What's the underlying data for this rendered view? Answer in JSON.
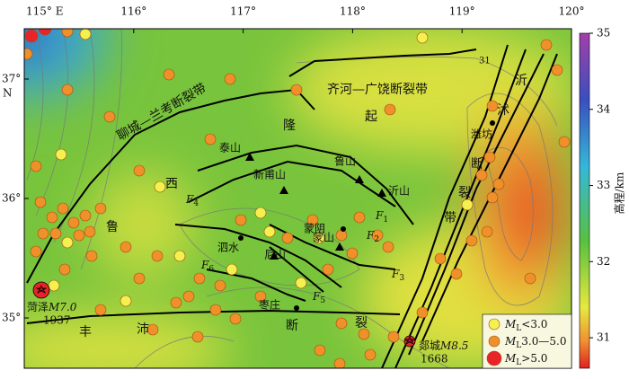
{
  "map": {
    "lon_ticks": [
      {
        "value": 115,
        "label": "115° E"
      },
      {
        "value": 116,
        "label": "116°"
      },
      {
        "value": 117,
        "label": "117°"
      },
      {
        "value": 118,
        "label": "118°"
      },
      {
        "value": 119,
        "label": "119°"
      },
      {
        "value": 120,
        "label": "120°"
      }
    ],
    "lat_ticks": [
      {
        "value": 37,
        "label": "37°"
      },
      {
        "value": 36,
        "label": "36°"
      },
      {
        "value": 35,
        "label": "35°"
      }
    ],
    "lat_hemisphere": "N",
    "colorbar": {
      "title": "高程/km",
      "range": [
        30.6,
        35
      ],
      "ticks": [
        31,
        32,
        33,
        34,
        35
      ]
    },
    "legend": [
      {
        "symbol": "M",
        "subscript": "L",
        "text": "<3.0"
      },
      {
        "symbol": "M",
        "subscript": "L",
        "text": "3.0—5.0"
      },
      {
        "symbol": "M",
        "subscript": "L",
        "text": ">5.0"
      }
    ],
    "mountains": [
      "泰山",
      "新甫山",
      "鲁山",
      "沂山",
      "蒙山",
      "尼山"
    ],
    "cities": [
      "蒙阴",
      "泗水",
      "枣庄",
      "潍坊"
    ],
    "fault_zones": {
      "liaocheng_lankao": "聊城—兰考断裂带",
      "qihe_guangrao": "齐河—广饶断裂带",
      "yishu": [
        "沂",
        "沭",
        "断",
        "裂",
        "带"
      ],
      "fengpei": [
        "丰",
        "沛",
        "断",
        "裂"
      ]
    },
    "uplift": [
      "鲁",
      "西",
      "隆",
      "起"
    ],
    "faults": [
      {
        "symbol": "F",
        "subscript": "1"
      },
      {
        "symbol": "F",
        "subscript": "2"
      },
      {
        "symbol": "F",
        "subscript": "3"
      },
      {
        "symbol": "F",
        "subscript": "4"
      },
      {
        "symbol": "F",
        "subscript": "5"
      },
      {
        "symbol": "F",
        "subscript": "6"
      }
    ],
    "epicenters": [
      {
        "name": "菏泽",
        "magnitude": "M7.0",
        "year": "1937"
      },
      {
        "name": "郯城",
        "magnitude": "M8.5",
        "year": "1668"
      }
    ],
    "contour_label": "31"
  }
}
